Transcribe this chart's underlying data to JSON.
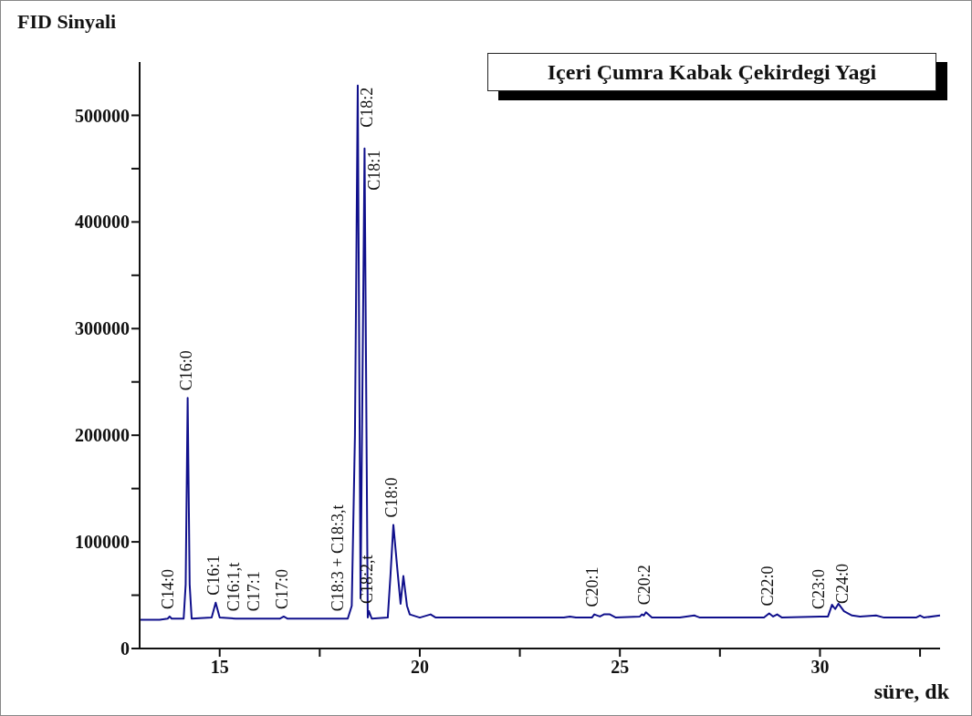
{
  "chart_data": {
    "type": "line",
    "title": "Içeri Çumra Kabak Çekirdegi Yagi",
    "xlabel": "süre, dk",
    "ylabel": "FID Sinyali",
    "xlim": [
      13,
      33
    ],
    "xticks": [
      15,
      {
        "value": 17.5,
        "label": null
      },
      20,
      {
        "value": 22.5,
        "label": null
      },
      25,
      {
        "value": 27.5,
        "label": null
      },
      30,
      {
        "value": 32.5,
        "label": null
      }
    ],
    "ylim": [
      0,
      550000
    ],
    "yticks": [
      0,
      {
        "value": 50000,
        "label": null
      },
      100000,
      {
        "value": 150000,
        "label": null
      },
      200000,
      {
        "value": 250000,
        "label": null
      },
      300000,
      {
        "value": 350000,
        "label": null
      },
      400000,
      {
        "value": 450000,
        "label": null
      },
      500000
    ],
    "series": [
      {
        "color": "#10108c",
        "x": [
          13.0,
          13.5,
          13.7,
          13.75,
          13.8,
          14.1,
          14.15,
          14.2,
          14.25,
          14.3,
          14.8,
          14.9,
          15.0,
          15.4,
          15.5,
          15.9,
          16.5,
          16.6,
          16.7,
          18.0,
          18.2,
          18.3,
          18.38,
          18.45,
          18.52,
          18.62,
          18.7,
          18.73,
          18.8,
          19.2,
          19.27,
          19.34,
          19.45,
          19.52,
          19.59,
          19.68,
          19.75,
          20.0,
          20.27,
          20.4,
          22.0,
          23.6,
          23.75,
          23.9,
          24.3,
          24.36,
          24.5,
          24.6,
          24.75,
          24.9,
          25.5,
          25.55,
          25.6,
          25.65,
          25.8,
          26.5,
          26.86,
          27.0,
          28.6,
          28.73,
          28.83,
          28.93,
          29.05,
          30.0,
          30.2,
          30.3,
          30.38,
          30.46,
          30.6,
          30.8,
          31.0,
          31.4,
          31.6,
          32.4,
          32.5,
          32.6,
          33.0
        ],
        "values": [
          27000,
          27000,
          28000,
          30000,
          28000,
          28000,
          60000,
          235000,
          60000,
          28000,
          29000,
          43000,
          29000,
          28000,
          28000,
          28000,
          28000,
          30000,
          28000,
          28000,
          28000,
          40000,
          200000,
          528000,
          47000,
          469000,
          29000,
          35000,
          28000,
          29000,
          70000,
          116000,
          70000,
          42000,
          68000,
          40000,
          32000,
          29000,
          32000,
          29000,
          29000,
          29000,
          30000,
          29000,
          29000,
          32000,
          30000,
          32000,
          32000,
          29000,
          30000,
          32000,
          31000,
          34000,
          29000,
          29000,
          31000,
          29000,
          29000,
          33000,
          30000,
          32000,
          29000,
          30000,
          30000,
          41000,
          37000,
          42000,
          35000,
          31000,
          30000,
          31000,
          29000,
          29000,
          31000,
          29000,
          31000
        ]
      }
    ],
    "annotations": [
      {
        "text": "C14:0",
        "x": 13.75,
        "y": 30000
      },
      {
        "text": "C16:0",
        "x": 14.2,
        "y": 235000
      },
      {
        "text": "C16:1",
        "x": 14.9,
        "y": 43000
      },
      {
        "text": "C16:1,t",
        "x": 15.4,
        "y": 28000
      },
      {
        "text": "C17:1",
        "x": 15.9,
        "y": 28000
      },
      {
        "text": "C17:0",
        "x": 16.6,
        "y": 30000
      },
      {
        "text": "C18:3 + C18:3,t",
        "x": 18.0,
        "y": 28000
      },
      {
        "text": "C18:2",
        "x": 18.45,
        "y": 528000
      },
      {
        "text": "C18:1",
        "x": 18.62,
        "y": 469000
      },
      {
        "text": "C18:2,t",
        "x": 18.73,
        "y": 35000
      },
      {
        "text": "C18:0",
        "x": 19.34,
        "y": 116000
      },
      {
        "text": "C20:1",
        "x": 24.36,
        "y": 32000
      },
      {
        "text": "C20:2",
        "x": 25.65,
        "y": 34000
      },
      {
        "text": "C22:0",
        "x": 28.73,
        "y": 33000
      },
      {
        "text": "C23:0",
        "x": 30.0,
        "y": 30000
      },
      {
        "text": "C24:0",
        "x": 30.6,
        "y": 35000
      }
    ]
  }
}
